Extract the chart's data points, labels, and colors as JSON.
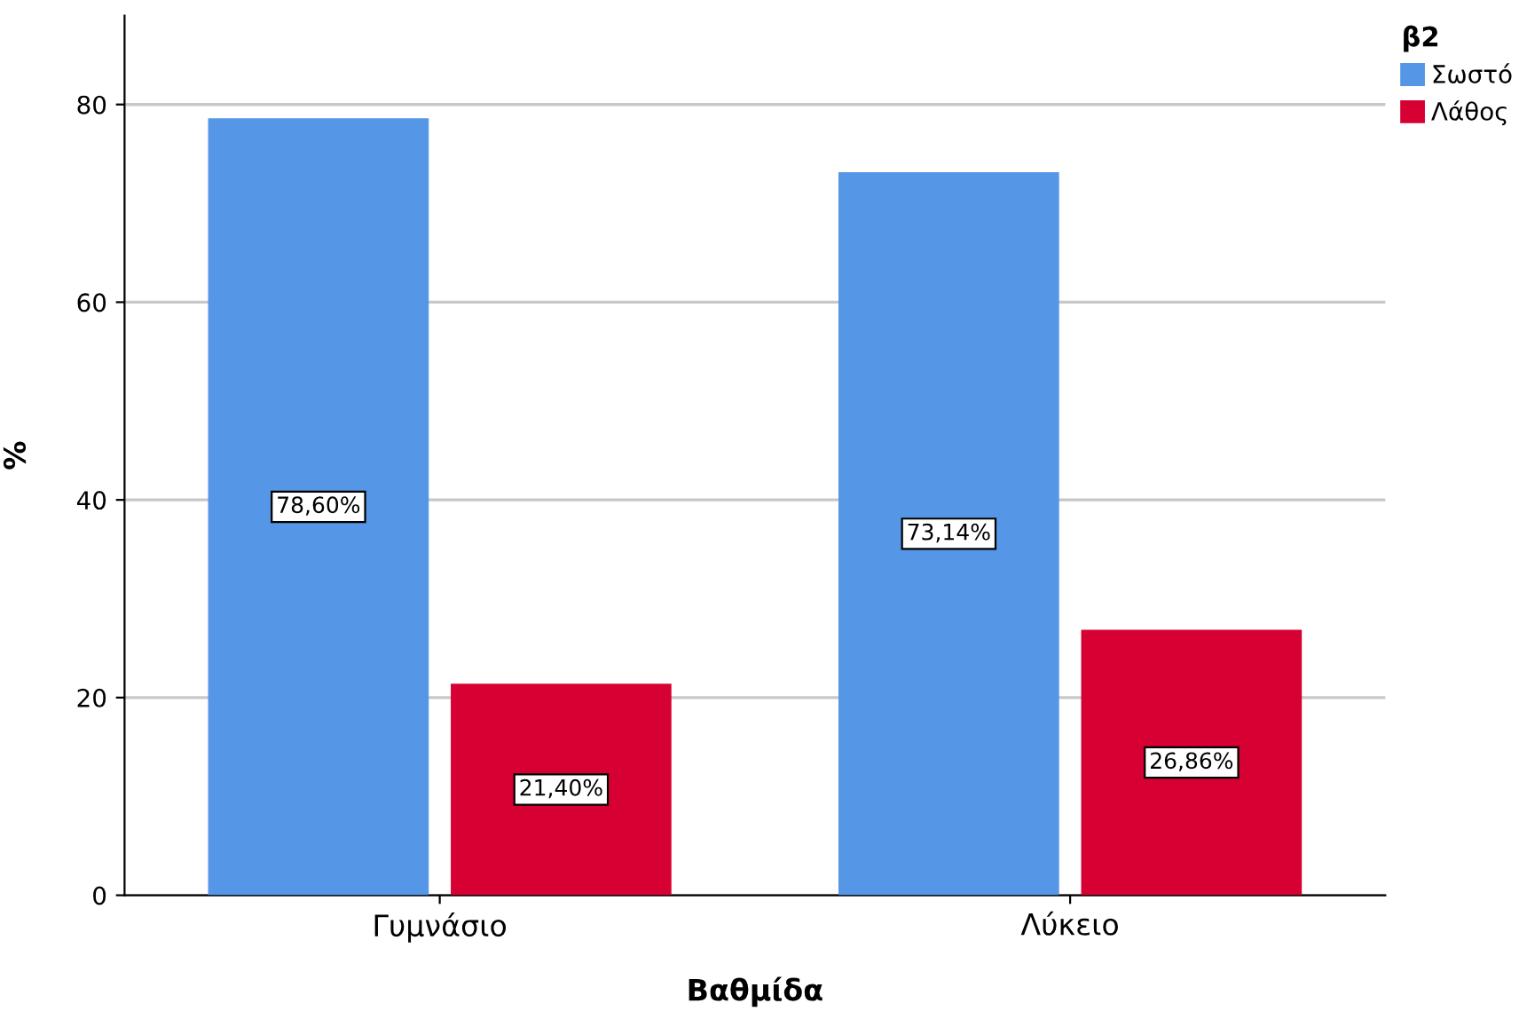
{
  "chart_data": {
    "type": "bar",
    "categories": [
      "Γυμνάσιο",
      "Λύκειο"
    ],
    "xlabel": "Βαθμίδα",
    "ylabel": "%",
    "legend_title": "β2",
    "series": [
      {
        "name": "Σωστό",
        "color": "#5596e6",
        "values": [
          78.6,
          73.14
        ],
        "value_labels": [
          "78,60%",
          "73,14%"
        ]
      },
      {
        "name": "Λάθος",
        "color": "#d60032",
        "values": [
          21.4,
          26.86
        ],
        "value_labels": [
          "21,40%",
          "26,86%"
        ]
      }
    ],
    "ylim": [
      0,
      89
    ],
    "yticks": [
      0,
      20,
      40,
      60,
      80
    ],
    "grid": "y",
    "legend": "top right"
  }
}
